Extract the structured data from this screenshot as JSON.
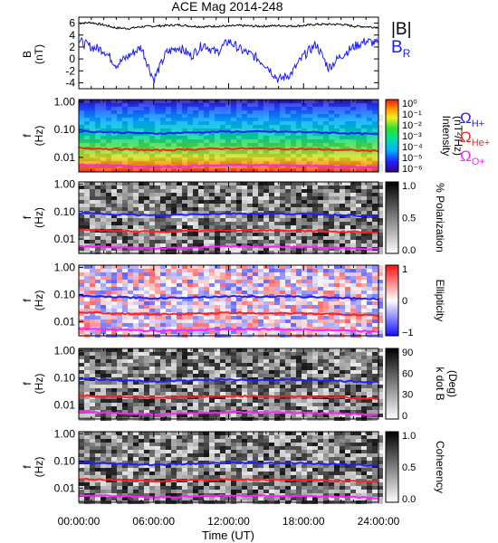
{
  "title": "ACE Mag 2014-248",
  "xaxis": {
    "label": "Time (UT)",
    "ticks": [
      "00:00:00",
      "06:00:00",
      "12:00:00",
      "18:00:00",
      "24:00:00"
    ],
    "range_hours": [
      0,
      24
    ]
  },
  "line_panel": {
    "ylabel": "B",
    "yunits": "(nT)",
    "ticks": [
      "6",
      "4",
      "2",
      "0",
      "-2",
      "-4"
    ],
    "legend": [
      {
        "label": "|B|",
        "color": "#000000"
      },
      {
        "label": "B",
        "sub": "R",
        "color": "#1a1aff"
      }
    ]
  },
  "freq_panels": [
    {
      "id": "intensity",
      "cbar_title": "Intensity",
      "cbar_units": "(nT²/Hz)",
      "cbar_ticks": [
        "10⁰",
        "10⁻¹",
        "10⁻²",
        "10⁻³",
        "10⁻⁴",
        "10⁻⁵",
        "10⁻⁶"
      ]
    },
    {
      "id": "polarization",
      "cbar_title": "% Polarization",
      "cbar_units": "",
      "cbar_ticks": [
        "1.0",
        "0.5",
        "0.0"
      ]
    },
    {
      "id": "ellipticity",
      "cbar_title": "Ellipticity",
      "cbar_units": "",
      "cbar_ticks": [
        "1",
        "0",
        "−1"
      ]
    },
    {
      "id": "kdotb",
      "cbar_title": "k dot B",
      "cbar_units": "(Deg)",
      "cbar_ticks": [
        "90",
        "60",
        "30",
        "0"
      ]
    },
    {
      "id": "coherency",
      "cbar_title": "Coherency",
      "cbar_units": "",
      "cbar_ticks": [
        "1.0",
        "0.5",
        "0.0"
      ]
    }
  ],
  "freq_axis": {
    "label": "f",
    "units": "(Hz)",
    "ticks": [
      "1.00",
      "0.10",
      "0.01"
    ]
  },
  "gyro_legend": [
    {
      "symbol": "Ω",
      "sub": "H+",
      "color": "#2020ff"
    },
    {
      "symbol": "Ω",
      "sub": "He+",
      "color": "#ff2020"
    },
    {
      "symbol": "Ω",
      "sub": "O+",
      "color": "#ff20ff"
    }
  ],
  "chart_data": [
    {
      "type": "line",
      "x_units": "hours UT",
      "ylim": [
        -5,
        7
      ],
      "series": [
        {
          "name": "|B|",
          "color": "#000000",
          "x": [
            0,
            1,
            2,
            3,
            4,
            5,
            6,
            7,
            8,
            9,
            10,
            11,
            12,
            13,
            14,
            15,
            16,
            17,
            18,
            19,
            20,
            21,
            22,
            23,
            24
          ],
          "y": [
            6.0,
            6.1,
            5.7,
            5.2,
            5.1,
            5.4,
            5.5,
            5.6,
            5.7,
            5.5,
            5.4,
            5.5,
            5.5,
            5.6,
            5.5,
            5.5,
            5.6,
            5.5,
            5.6,
            5.8,
            5.8,
            5.8,
            5.5,
            5.4,
            5.3
          ]
        },
        {
          "name": "B_R",
          "color": "#1a1aff",
          "x": [
            0,
            1,
            2,
            3,
            4,
            5,
            6,
            7,
            8,
            9,
            10,
            11,
            12,
            13,
            14,
            15,
            16,
            17,
            18,
            19,
            20,
            21,
            22,
            23,
            24
          ],
          "y": [
            3.0,
            2.0,
            1.5,
            -1.0,
            0.5,
            2.0,
            -3.5,
            1.0,
            2.0,
            0.5,
            2.5,
            1.0,
            3.0,
            1.5,
            0.5,
            -1.0,
            -3.5,
            -2.5,
            0.5,
            2.5,
            -1.5,
            0.5,
            2.0,
            3.0,
            2.5
          ]
        }
      ]
    },
    {
      "type": "line",
      "x_units": "hours UT",
      "y_units": "Hz",
      "y_scale": "log",
      "ylim": [
        0.003,
        1.2
      ],
      "series": [
        {
          "name": "ΩH+",
          "color": "#2020ff",
          "x": [
            0,
            6,
            12,
            18,
            24
          ],
          "y": [
            0.088,
            0.072,
            0.085,
            0.082,
            0.068
          ]
        },
        {
          "name": "ΩHe+",
          "color": "#ff2020",
          "x": [
            0,
            6,
            12,
            18,
            24
          ],
          "y": [
            0.022,
            0.018,
            0.021,
            0.02,
            0.017
          ]
        },
        {
          "name": "ΩO+",
          "color": "#ff20ff",
          "x": [
            0,
            6,
            12,
            18,
            24
          ],
          "y": [
            0.0055,
            0.0045,
            0.0053,
            0.0051,
            0.0043
          ]
        }
      ]
    }
  ]
}
